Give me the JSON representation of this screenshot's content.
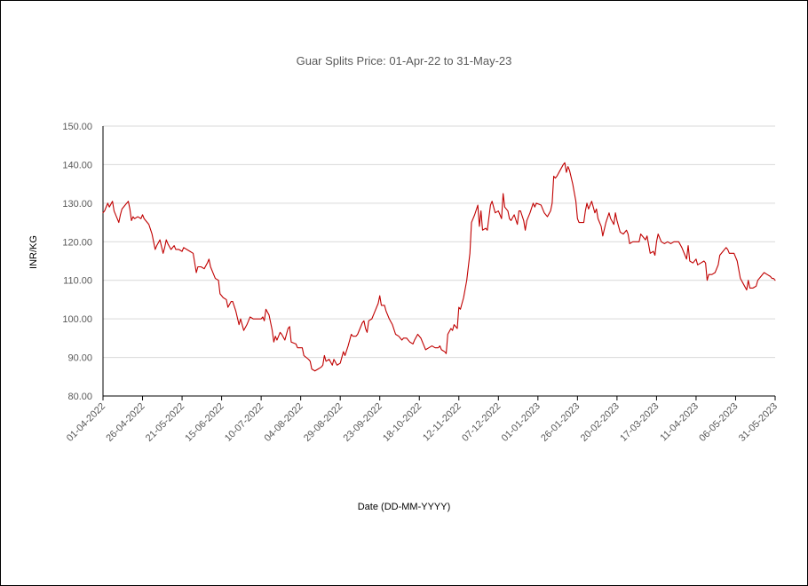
{
  "chart_data": {
    "type": "line",
    "title": "Guar Splits Price: 01-Apr-22 to 31-May-23",
    "xlabel": "Date (DD-MM-YYYY)",
    "ylabel": "INR/KG",
    "ylim": [
      80,
      150
    ],
    "yticks": [
      "80.00",
      "90.00",
      "100.00",
      "110.00",
      "120.00",
      "130.00",
      "140.00",
      "150.00"
    ],
    "xlim": [
      "2022-04-01",
      "2023-05-31"
    ],
    "xticks": [
      "01-04-2022",
      "26-04-2022",
      "21-05-2022",
      "15-06-2022",
      "10-07-2022",
      "04-08-2022",
      "29-08-2022",
      "23-09-2022",
      "18-10-2022",
      "12-11-2022",
      "07-12-2022",
      "01-01-2023",
      "26-01-2023",
      "20-02-2023",
      "17-03-2023",
      "11-04-2023",
      "06-05-2023",
      "31-05-2023"
    ],
    "grid": true,
    "legend": "none",
    "series": [
      {
        "color": "#c00000",
        "points": [
          [
            "2022-04-01",
            127.5
          ],
          [
            "2022-04-02",
            128.0
          ],
          [
            "2022-04-04",
            130.0
          ],
          [
            "2022-04-05",
            129.0
          ],
          [
            "2022-04-07",
            130.5
          ],
          [
            "2022-04-08",
            128.0
          ],
          [
            "2022-04-11",
            125.0
          ],
          [
            "2022-04-12",
            127.0
          ],
          [
            "2022-04-13",
            128.5
          ],
          [
            "2022-04-15",
            129.5
          ],
          [
            "2022-04-17",
            130.5
          ],
          [
            "2022-04-18",
            128.5
          ],
          [
            "2022-04-19",
            125.5
          ],
          [
            "2022-04-20",
            126.5
          ],
          [
            "2022-04-21",
            126.0
          ],
          [
            "2022-04-23",
            126.5
          ],
          [
            "2022-04-25",
            126.0
          ],
          [
            "2022-04-26",
            127.0
          ],
          [
            "2022-04-27",
            126.0
          ],
          [
            "2022-04-30",
            124.5
          ],
          [
            "2022-05-02",
            122.0
          ],
          [
            "2022-05-04",
            118.0
          ],
          [
            "2022-05-05",
            119.0
          ],
          [
            "2022-05-07",
            120.5
          ],
          [
            "2022-05-09",
            117.0
          ],
          [
            "2022-05-10",
            118.5
          ],
          [
            "2022-05-11",
            120.5
          ],
          [
            "2022-05-12",
            119.5
          ],
          [
            "2022-05-14",
            118.0
          ],
          [
            "2022-05-16",
            119.0
          ],
          [
            "2022-05-17",
            118.0
          ],
          [
            "2022-05-19",
            118.0
          ],
          [
            "2022-05-21",
            117.5
          ],
          [
            "2022-05-22",
            118.5
          ],
          [
            "2022-05-24",
            118.0
          ],
          [
            "2022-05-26",
            117.5
          ],
          [
            "2022-05-28",
            117.0
          ],
          [
            "2022-05-30",
            112.0
          ],
          [
            "2022-05-31",
            113.5
          ],
          [
            "2022-06-02",
            113.5
          ],
          [
            "2022-06-04",
            113.0
          ],
          [
            "2022-06-06",
            114.5
          ],
          [
            "2022-06-07",
            115.5
          ],
          [
            "2022-06-08",
            113.5
          ],
          [
            "2022-06-10",
            111.5
          ],
          [
            "2022-06-11",
            110.5
          ],
          [
            "2022-06-13",
            110.0
          ],
          [
            "2022-06-14",
            106.5
          ],
          [
            "2022-06-16",
            105.5
          ],
          [
            "2022-06-18",
            105.0
          ],
          [
            "2022-06-19",
            103.0
          ],
          [
            "2022-06-21",
            104.5
          ],
          [
            "2022-06-22",
            104.5
          ],
          [
            "2022-06-24",
            102.0
          ],
          [
            "2022-06-26",
            98.5
          ],
          [
            "2022-06-27",
            100.0
          ],
          [
            "2022-06-29",
            97.0
          ],
          [
            "2022-07-01",
            98.5
          ],
          [
            "2022-07-03",
            100.5
          ],
          [
            "2022-07-05",
            100.0
          ],
          [
            "2022-07-08",
            100.0
          ],
          [
            "2022-07-10",
            100.0
          ],
          [
            "2022-07-11",
            100.5
          ],
          [
            "2022-07-12",
            99.5
          ],
          [
            "2022-07-13",
            102.5
          ],
          [
            "2022-07-15",
            101.0
          ],
          [
            "2022-07-17",
            97.0
          ],
          [
            "2022-07-18",
            94.0
          ],
          [
            "2022-07-19",
            95.5
          ],
          [
            "2022-07-20",
            94.5
          ],
          [
            "2022-07-22",
            96.5
          ],
          [
            "2022-07-23",
            96.0
          ],
          [
            "2022-07-25",
            94.5
          ],
          [
            "2022-07-27",
            97.5
          ],
          [
            "2022-07-28",
            98.0
          ],
          [
            "2022-07-29",
            94.0
          ],
          [
            "2022-08-01",
            93.5
          ],
          [
            "2022-08-02",
            92.5
          ],
          [
            "2022-08-04",
            92.5
          ],
          [
            "2022-08-05",
            92.5
          ],
          [
            "2022-08-06",
            90.5
          ],
          [
            "2022-08-09",
            89.5
          ],
          [
            "2022-08-10",
            89.0
          ],
          [
            "2022-08-11",
            87.0
          ],
          [
            "2022-08-13",
            86.5
          ],
          [
            "2022-08-15",
            87.0
          ],
          [
            "2022-08-17",
            87.5
          ],
          [
            "2022-08-18",
            88.0
          ],
          [
            "2022-08-19",
            90.5
          ],
          [
            "2022-08-20",
            89.0
          ],
          [
            "2022-08-22",
            89.5
          ],
          [
            "2022-08-24",
            88.0
          ],
          [
            "2022-08-25",
            89.5
          ],
          [
            "2022-08-27",
            88.0
          ],
          [
            "2022-08-29",
            88.5
          ],
          [
            "2022-08-31",
            91.5
          ],
          [
            "2022-09-01",
            90.5
          ],
          [
            "2022-09-03",
            93.0
          ],
          [
            "2022-09-05",
            96.0
          ],
          [
            "2022-09-06",
            95.5
          ],
          [
            "2022-09-08",
            95.5
          ],
          [
            "2022-09-09",
            96.0
          ],
          [
            "2022-09-12",
            99.0
          ],
          [
            "2022-09-13",
            99.5
          ],
          [
            "2022-09-14",
            97.5
          ],
          [
            "2022-09-15",
            96.5
          ],
          [
            "2022-09-16",
            99.5
          ],
          [
            "2022-09-18",
            100.0
          ],
          [
            "2022-09-20",
            102.0
          ],
          [
            "2022-09-22",
            104.0
          ],
          [
            "2022-09-23",
            106.0
          ],
          [
            "2022-09-24",
            103.5
          ],
          [
            "2022-09-26",
            103.5
          ],
          [
            "2022-09-27",
            102.0
          ],
          [
            "2022-09-29",
            100.0
          ],
          [
            "2022-10-01",
            98.5
          ],
          [
            "2022-10-03",
            96.0
          ],
          [
            "2022-10-05",
            95.5
          ],
          [
            "2022-10-07",
            94.5
          ],
          [
            "2022-10-08",
            95.0
          ],
          [
            "2022-10-10",
            95.0
          ],
          [
            "2022-10-12",
            94.0
          ],
          [
            "2022-10-14",
            93.5
          ],
          [
            "2022-10-15",
            94.5
          ],
          [
            "2022-10-17",
            96.0
          ],
          [
            "2022-10-19",
            95.0
          ],
          [
            "2022-10-21",
            93.0
          ],
          [
            "2022-10-22",
            92.0
          ],
          [
            "2022-10-24",
            92.5
          ],
          [
            "2022-10-26",
            93.0
          ],
          [
            "2022-10-28",
            92.5
          ],
          [
            "2022-10-30",
            92.5
          ],
          [
            "2022-10-31",
            93.0
          ],
          [
            "2022-11-01",
            92.0
          ],
          [
            "2022-11-03",
            91.5
          ],
          [
            "2022-11-04",
            91.0
          ],
          [
            "2022-11-05",
            96.0
          ],
          [
            "2022-11-07",
            97.5
          ],
          [
            "2022-11-08",
            97.0
          ],
          [
            "2022-11-09",
            98.5
          ],
          [
            "2022-11-11",
            97.5
          ],
          [
            "2022-11-12",
            103.0
          ],
          [
            "2022-11-13",
            102.5
          ],
          [
            "2022-11-15",
            105.5
          ],
          [
            "2022-11-17",
            110.0
          ],
          [
            "2022-11-19",
            117.0
          ],
          [
            "2022-11-20",
            125.0
          ],
          [
            "2022-11-22",
            127.0
          ],
          [
            "2022-11-24",
            129.5
          ],
          [
            "2022-11-25",
            124.0
          ],
          [
            "2022-11-26",
            128.0
          ],
          [
            "2022-11-27",
            123.0
          ],
          [
            "2022-11-29",
            123.5
          ],
          [
            "2022-11-30",
            123.0
          ],
          [
            "2022-12-02",
            129.5
          ],
          [
            "2022-12-03",
            130.5
          ],
          [
            "2022-12-05",
            127.5
          ],
          [
            "2022-12-07",
            128.0
          ],
          [
            "2022-12-09",
            126.0
          ],
          [
            "2022-12-10",
            132.5
          ],
          [
            "2022-12-11",
            129.0
          ],
          [
            "2022-12-13",
            128.0
          ],
          [
            "2022-12-14",
            126.0
          ],
          [
            "2022-12-15",
            125.5
          ],
          [
            "2022-12-17",
            127.0
          ],
          [
            "2022-12-19",
            124.5
          ],
          [
            "2022-12-20",
            128.0
          ],
          [
            "2022-12-21",
            128.0
          ],
          [
            "2022-12-23",
            125.5
          ],
          [
            "2022-12-24",
            123.0
          ],
          [
            "2022-12-25",
            125.5
          ],
          [
            "2022-12-27",
            127.5
          ],
          [
            "2022-12-29",
            130.0
          ],
          [
            "2022-12-30",
            129.0
          ],
          [
            "2022-12-31",
            130.0
          ],
          [
            "2023-01-03",
            129.5
          ],
          [
            "2023-01-05",
            127.5
          ],
          [
            "2023-01-06",
            127.0
          ],
          [
            "2023-01-07",
            126.5
          ],
          [
            "2023-01-09",
            128.0
          ],
          [
            "2023-01-10",
            130.0
          ],
          [
            "2023-01-11",
            137.0
          ],
          [
            "2023-01-12",
            136.5
          ],
          [
            "2023-01-13",
            137.0
          ],
          [
            "2023-01-15",
            138.5
          ],
          [
            "2023-01-17",
            140.0
          ],
          [
            "2023-01-18",
            140.5
          ],
          [
            "2023-01-19",
            138.0
          ],
          [
            "2023-01-20",
            139.5
          ],
          [
            "2023-01-21",
            138.5
          ],
          [
            "2023-01-23",
            135.0
          ],
          [
            "2023-01-25",
            130.5
          ],
          [
            "2023-01-26",
            126.0
          ],
          [
            "2023-01-27",
            125.0
          ],
          [
            "2023-01-30",
            125.0
          ],
          [
            "2023-01-31",
            128.0
          ],
          [
            "2023-02-01",
            130.0
          ],
          [
            "2023-02-02",
            128.5
          ],
          [
            "2023-02-04",
            130.5
          ],
          [
            "2023-02-06",
            127.5
          ],
          [
            "2023-02-07",
            128.5
          ],
          [
            "2023-02-08",
            126.0
          ],
          [
            "2023-02-10",
            124.0
          ],
          [
            "2023-02-11",
            121.5
          ],
          [
            "2023-02-13",
            125.0
          ],
          [
            "2023-02-15",
            127.5
          ],
          [
            "2023-02-16",
            126.0
          ],
          [
            "2023-02-18",
            124.5
          ],
          [
            "2023-02-19",
            127.5
          ],
          [
            "2023-02-20",
            125.5
          ],
          [
            "2023-02-22",
            122.5
          ],
          [
            "2023-02-24",
            122.0
          ],
          [
            "2023-02-26",
            123.0
          ],
          [
            "2023-02-27",
            122.0
          ],
          [
            "2023-02-28",
            119.5
          ],
          [
            "2023-03-02",
            120.0
          ],
          [
            "2023-03-04",
            120.0
          ],
          [
            "2023-03-06",
            120.0
          ],
          [
            "2023-03-07",
            122.0
          ],
          [
            "2023-03-08",
            121.5
          ],
          [
            "2023-03-10",
            120.5
          ],
          [
            "2023-03-11",
            121.5
          ],
          [
            "2023-03-13",
            117.0
          ],
          [
            "2023-03-15",
            117.5
          ],
          [
            "2023-03-16",
            116.5
          ],
          [
            "2023-03-17",
            120.0
          ],
          [
            "2023-03-18",
            122.0
          ],
          [
            "2023-03-20",
            120.0
          ],
          [
            "2023-03-22",
            119.5
          ],
          [
            "2023-03-24",
            120.0
          ],
          [
            "2023-03-26",
            119.5
          ],
          [
            "2023-03-28",
            120.0
          ],
          [
            "2023-03-31",
            120.0
          ],
          [
            "2023-04-02",
            118.5
          ],
          [
            "2023-04-04",
            116.5
          ],
          [
            "2023-04-05",
            115.5
          ],
          [
            "2023-04-06",
            119.0
          ],
          [
            "2023-04-07",
            115.0
          ],
          [
            "2023-04-09",
            114.5
          ],
          [
            "2023-04-11",
            115.5
          ],
          [
            "2023-04-12",
            114.0
          ],
          [
            "2023-04-14",
            114.5
          ],
          [
            "2023-04-16",
            115.0
          ],
          [
            "2023-04-17",
            114.5
          ],
          [
            "2023-04-18",
            110.0
          ],
          [
            "2023-04-19",
            111.5
          ],
          [
            "2023-04-21",
            111.5
          ],
          [
            "2023-04-23",
            112.0
          ],
          [
            "2023-04-25",
            114.0
          ],
          [
            "2023-04-26",
            116.5
          ],
          [
            "2023-04-28",
            117.5
          ],
          [
            "2023-04-30",
            118.5
          ],
          [
            "2023-05-01",
            118.0
          ],
          [
            "2023-05-02",
            117.0
          ],
          [
            "2023-05-05",
            117.0
          ],
          [
            "2023-05-07",
            115.0
          ],
          [
            "2023-05-09",
            110.5
          ],
          [
            "2023-05-11",
            109.0
          ],
          [
            "2023-05-13",
            107.5
          ],
          [
            "2023-05-14",
            110.0
          ],
          [
            "2023-05-15",
            108.0
          ],
          [
            "2023-05-17",
            108.0
          ],
          [
            "2023-05-19",
            108.5
          ],
          [
            "2023-05-20",
            110.0
          ],
          [
            "2023-05-22",
            111.0
          ],
          [
            "2023-05-24",
            112.0
          ],
          [
            "2023-05-26",
            111.5
          ],
          [
            "2023-05-28",
            111.0
          ],
          [
            "2023-05-29",
            110.5
          ],
          [
            "2023-05-30",
            110.5
          ],
          [
            "2023-05-31",
            110.0
          ]
        ]
      }
    ]
  }
}
